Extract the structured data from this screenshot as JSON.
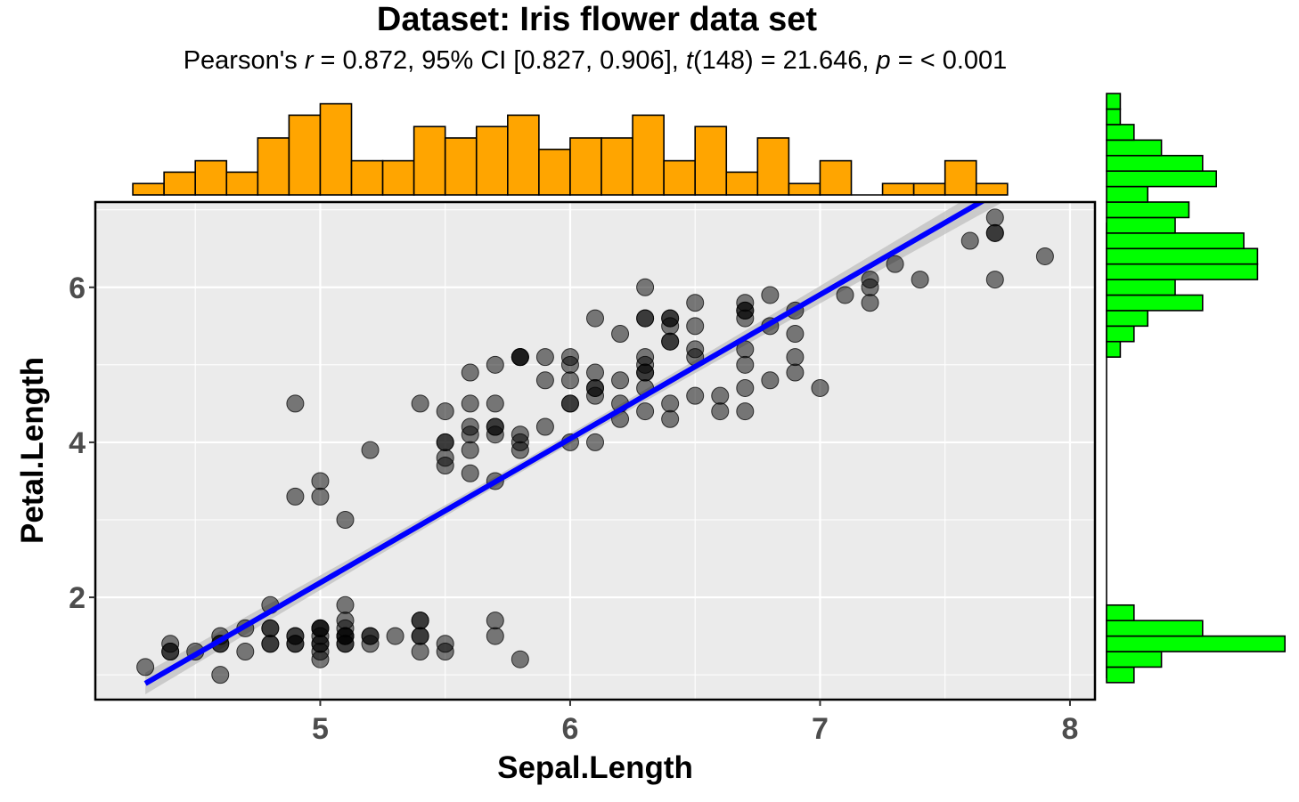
{
  "chart_data": {
    "type": "scatter",
    "title": "Dataset: Iris flower data set",
    "subtitle": {
      "parts": [
        {
          "text": "Pearson's ",
          "italic": false
        },
        {
          "text": "r",
          "italic": true
        },
        {
          "text": " = 0.872, 95% CI [0.827, 0.906], ",
          "italic": false
        },
        {
          "text": "t",
          "italic": true
        },
        {
          "text": "(148) = 21.646, ",
          "italic": false
        },
        {
          "text": "p",
          "italic": true
        },
        {
          "text": " = < 0.001",
          "italic": false
        }
      ]
    },
    "xlabel": "Sepal.Length",
    "ylabel": "Petal.Length",
    "xlim": [
      4.1,
      8.1
    ],
    "ylim": [
      0.68,
      7.1
    ],
    "xticks": [
      5,
      6,
      7,
      8
    ],
    "yticks": [
      2,
      4,
      6
    ],
    "xtick_labels": [
      "5",
      "6",
      "7",
      "8"
    ],
    "ytick_labels": [
      "2",
      "4",
      "6"
    ],
    "grid": true,
    "colors": {
      "panel_background": "#ebebeb",
      "grid": "#ffffff",
      "points": "#000000",
      "regression_line": "#0000ff",
      "confidence_band": "#bfbfbf",
      "x_histogram": "#ffa500",
      "y_histogram": "#00ff00"
    },
    "regression": {
      "intercept": -7.101,
      "slope": 1.858,
      "x_range": [
        4.3,
        7.9
      ]
    },
    "points": [
      [
        5.1,
        1.4
      ],
      [
        4.9,
        1.4
      ],
      [
        4.7,
        1.3
      ],
      [
        4.6,
        1.5
      ],
      [
        5.0,
        1.4
      ],
      [
        5.4,
        1.7
      ],
      [
        4.6,
        1.4
      ],
      [
        5.0,
        1.5
      ],
      [
        4.4,
        1.4
      ],
      [
        4.9,
        1.5
      ],
      [
        5.4,
        1.5
      ],
      [
        4.8,
        1.6
      ],
      [
        4.8,
        1.4
      ],
      [
        4.3,
        1.1
      ],
      [
        5.8,
        1.2
      ],
      [
        5.7,
        1.5
      ],
      [
        5.4,
        1.3
      ],
      [
        5.1,
        1.4
      ],
      [
        5.7,
        1.7
      ],
      [
        5.1,
        1.5
      ],
      [
        5.4,
        1.7
      ],
      [
        5.1,
        1.5
      ],
      [
        4.6,
        1.0
      ],
      [
        5.1,
        1.7
      ],
      [
        4.8,
        1.9
      ],
      [
        5.0,
        1.6
      ],
      [
        5.0,
        1.6
      ],
      [
        5.2,
        1.5
      ],
      [
        5.2,
        1.4
      ],
      [
        4.7,
        1.6
      ],
      [
        4.8,
        1.6
      ],
      [
        5.4,
        1.5
      ],
      [
        5.2,
        1.5
      ],
      [
        5.5,
        1.4
      ],
      [
        4.9,
        1.5
      ],
      [
        5.0,
        1.2
      ],
      [
        5.5,
        1.3
      ],
      [
        4.9,
        1.4
      ],
      [
        4.4,
        1.3
      ],
      [
        5.1,
        1.5
      ],
      [
        5.0,
        1.3
      ],
      [
        4.5,
        1.3
      ],
      [
        4.4,
        1.3
      ],
      [
        5.0,
        1.6
      ],
      [
        5.1,
        1.9
      ],
      [
        4.8,
        1.4
      ],
      [
        5.1,
        1.6
      ],
      [
        4.6,
        1.4
      ],
      [
        5.3,
        1.5
      ],
      [
        5.0,
        1.4
      ],
      [
        7.0,
        4.7
      ],
      [
        6.4,
        4.5
      ],
      [
        6.9,
        4.9
      ],
      [
        5.5,
        4.0
      ],
      [
        6.5,
        4.6
      ],
      [
        5.7,
        4.5
      ],
      [
        6.3,
        4.7
      ],
      [
        4.9,
        3.3
      ],
      [
        6.6,
        4.6
      ],
      [
        5.2,
        3.9
      ],
      [
        5.0,
        3.5
      ],
      [
        5.9,
        4.2
      ],
      [
        6.0,
        4.0
      ],
      [
        6.1,
        4.7
      ],
      [
        5.6,
        3.6
      ],
      [
        6.7,
        4.4
      ],
      [
        5.6,
        4.5
      ],
      [
        5.8,
        4.1
      ],
      [
        6.2,
        4.5
      ],
      [
        5.6,
        3.9
      ],
      [
        5.9,
        4.8
      ],
      [
        6.1,
        4.0
      ],
      [
        6.3,
        4.9
      ],
      [
        6.1,
        4.7
      ],
      [
        6.4,
        4.3
      ],
      [
        6.6,
        4.4
      ],
      [
        6.8,
        4.8
      ],
      [
        6.7,
        5.0
      ],
      [
        6.0,
        4.5
      ],
      [
        5.7,
        3.5
      ],
      [
        5.5,
        3.8
      ],
      [
        5.5,
        3.7
      ],
      [
        5.8,
        3.9
      ],
      [
        6.0,
        5.1
      ],
      [
        5.4,
        4.5
      ],
      [
        6.0,
        4.5
      ],
      [
        6.7,
        4.7
      ],
      [
        6.3,
        4.4
      ],
      [
        5.6,
        4.1
      ],
      [
        5.5,
        4.0
      ],
      [
        5.5,
        4.4
      ],
      [
        6.1,
        4.6
      ],
      [
        5.8,
        4.0
      ],
      [
        5.0,
        3.3
      ],
      [
        5.6,
        4.2
      ],
      [
        5.7,
        4.2
      ],
      [
        5.7,
        4.2
      ],
      [
        6.2,
        4.3
      ],
      [
        5.1,
        3.0
      ],
      [
        5.7,
        4.1
      ],
      [
        6.3,
        6.0
      ],
      [
        5.8,
        5.1
      ],
      [
        7.1,
        5.9
      ],
      [
        6.3,
        5.6
      ],
      [
        6.5,
        5.8
      ],
      [
        7.6,
        6.6
      ],
      [
        4.9,
        4.5
      ],
      [
        7.3,
        6.3
      ],
      [
        6.7,
        5.8
      ],
      [
        7.2,
        6.1
      ],
      [
        6.5,
        5.1
      ],
      [
        6.4,
        5.3
      ],
      [
        6.8,
        5.5
      ],
      [
        5.7,
        5.0
      ],
      [
        5.8,
        5.1
      ],
      [
        6.4,
        5.3
      ],
      [
        6.5,
        5.5
      ],
      [
        7.7,
        6.7
      ],
      [
        7.7,
        6.9
      ],
      [
        6.0,
        5.0
      ],
      [
        6.9,
        5.7
      ],
      [
        5.6,
        4.9
      ],
      [
        7.7,
        6.7
      ],
      [
        6.3,
        4.9
      ],
      [
        6.7,
        5.7
      ],
      [
        7.2,
        6.0
      ],
      [
        6.2,
        4.8
      ],
      [
        6.1,
        4.9
      ],
      [
        6.4,
        5.6
      ],
      [
        7.2,
        5.8
      ],
      [
        7.4,
        6.1
      ],
      [
        7.9,
        6.4
      ],
      [
        6.4,
        5.6
      ],
      [
        6.3,
        5.1
      ],
      [
        6.1,
        5.6
      ],
      [
        7.7,
        6.1
      ],
      [
        6.3,
        5.6
      ],
      [
        6.4,
        5.5
      ],
      [
        6.0,
        4.8
      ],
      [
        6.9,
        5.4
      ],
      [
        6.7,
        5.6
      ],
      [
        6.9,
        5.1
      ],
      [
        5.8,
        5.1
      ],
      [
        6.8,
        5.9
      ],
      [
        6.7,
        5.7
      ],
      [
        6.7,
        5.2
      ],
      [
        6.3,
        5.0
      ],
      [
        6.5,
        5.2
      ],
      [
        6.2,
        5.4
      ],
      [
        5.9,
        5.1
      ]
    ],
    "x_histogram": {
      "bin_start": 4.25,
      "bin_width": 0.125,
      "counts": [
        1,
        2,
        3,
        2,
        5,
        7,
        8,
        3,
        3,
        6,
        5,
        6,
        7,
        4,
        5,
        5,
        7,
        3,
        6,
        2,
        5,
        1,
        3,
        0,
        1,
        1,
        3,
        1
      ]
    },
    "y_histogram": {
      "bin_start": 0.9,
      "bin_width": 0.2,
      "counts": [
        2,
        4,
        13,
        7,
        2,
        0,
        0,
        0,
        0,
        0,
        0,
        0,
        0,
        0,
        0,
        0,
        0,
        0,
        0,
        0,
        0,
        1,
        2,
        3,
        7,
        5,
        11,
        11,
        10,
        5,
        6,
        3,
        8,
        7,
        4,
        2,
        1,
        1
      ]
    }
  }
}
